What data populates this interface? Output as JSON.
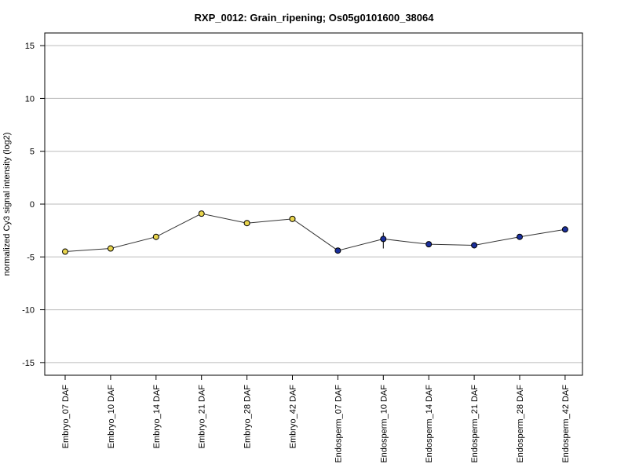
{
  "chart_data": {
    "type": "line",
    "title": "RXP_0012: Grain_ripening; Os05g0101600_38064",
    "xlabel": "",
    "ylabel": "normalized Cy3 signal intensity (log2)",
    "ylim": [
      -16.2,
      16.2
    ],
    "yticks": [
      15,
      10,
      5,
      0,
      -5,
      -10,
      -15
    ],
    "grid": true,
    "categories": [
      "Embryo_07 DAF",
      "Embryo_10 DAF",
      "Embryo_14 DAF",
      "Embryo_21 DAF",
      "Embryo_28 DAF",
      "Embryo_42 DAF",
      "Endosperm_07 DAF",
      "Endosperm_10 DAF",
      "Endosperm_14 DAF",
      "Endosperm_21 DAF",
      "Endosperm_28 DAF",
      "Endosperm_42 DAF"
    ],
    "values": [
      -4.5,
      -4.2,
      -3.1,
      -0.9,
      -1.8,
      -1.4,
      -4.4,
      -3.3,
      -3.8,
      -3.9,
      -3.1,
      -2.4
    ],
    "error_low": [
      -4.7,
      -4.3,
      -3.4,
      -1.0,
      -1.9,
      -1.5,
      -4.6,
      -4.2,
      -3.9,
      -4.0,
      -3.2,
      -2.5
    ],
    "error_high": [
      -4.3,
      -4.1,
      -2.9,
      -0.8,
      -1.6,
      -1.3,
      -4.2,
      -2.7,
      -3.7,
      -3.8,
      -3.0,
      -2.3
    ],
    "point_colors": [
      "#e8d44d",
      "#e8d44d",
      "#e8d44d",
      "#e8d44d",
      "#e8d44d",
      "#e8d44d",
      "#1a2f9c",
      "#1a2f9c",
      "#1a2f9c",
      "#1a2f9c",
      "#1a2f9c",
      "#1a2f9c"
    ],
    "line_color": "#333333",
    "grid_color": "#bbbbbb"
  }
}
